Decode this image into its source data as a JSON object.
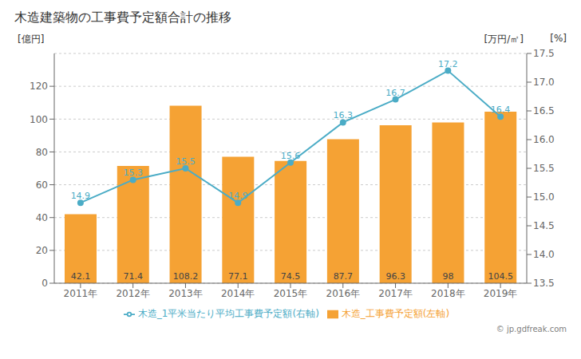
{
  "chart_data": {
    "type": "bar",
    "title": "木造建築物の工事費予定額合計の推移",
    "categories": [
      "2011年",
      "2012年",
      "2013年",
      "2014年",
      "2015年",
      "2016年",
      "2017年",
      "2018年",
      "2019年"
    ],
    "series": [
      {
        "name": "木造_工事費予定額(左軸)",
        "type": "bar",
        "color": "#F5A234",
        "values": [
          42.1,
          71.4,
          108.2,
          77.1,
          74.5,
          87.7,
          96.3,
          98.0,
          104.5
        ],
        "data_labels": true
      },
      {
        "name": "木造_1平米当たり平均工事費予定額(右軸)",
        "type": "line",
        "axis": "y2",
        "color": "#4BACC6",
        "marker": "circle",
        "values": [
          14.9,
          15.3,
          15.5,
          14.9,
          15.6,
          16.3,
          16.7,
          17.2,
          16.4
        ],
        "data_labels": true
      }
    ],
    "ylabel": "[億円]",
    "y2label": "[万円/㎡]",
    "annotations": [
      "[%]",
      "© jp.gdfreak.com"
    ],
    "ylim": [
      0,
      140
    ],
    "yticks": [
      0,
      20,
      40,
      60,
      80,
      100,
      120
    ],
    "y2lim": [
      13.5,
      17.5
    ],
    "y2ticks": [
      13.5,
      {
        "value": 14,
        "label": "14.0"
      },
      14.5,
      {
        "value": 15,
        "label": "15.0"
      },
      15.5,
      {
        "value": 16,
        "label": "16.0"
      },
      16.5,
      {
        "value": 17,
        "label": "17.0"
      },
      17.5
    ],
    "grid": true,
    "legend": "bottom"
  }
}
